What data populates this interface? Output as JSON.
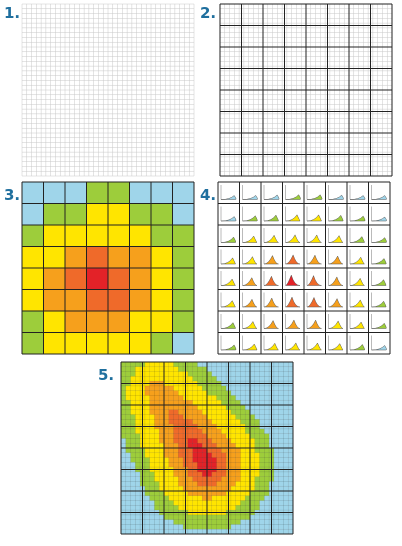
{
  "panels": [
    {
      "label": "1."
    },
    {
      "label": "2."
    },
    {
      "label": "3."
    },
    {
      "label": "4."
    },
    {
      "label": "5."
    }
  ]
}
